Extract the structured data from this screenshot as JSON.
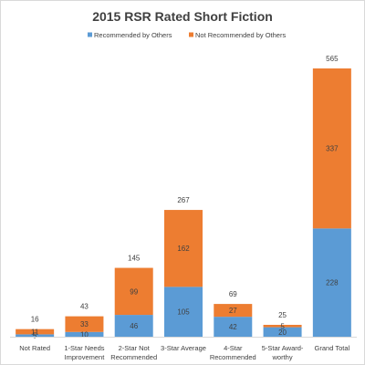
{
  "chart_data": {
    "type": "bar",
    "stacked": true,
    "title": "2015 RSR Rated Short Fiction",
    "categories": [
      [
        "Not Rated"
      ],
      [
        "1-Star Needs",
        "Improvement"
      ],
      [
        "2-Star Not",
        "Recommended"
      ],
      [
        "3-Star Average"
      ],
      [
        "4-Star",
        "Recommended"
      ],
      [
        "5-Star Award-",
        "worthy"
      ],
      [
        "Grand Total"
      ]
    ],
    "series": [
      {
        "name": "Recommended by Others",
        "color": "#5b9bd5",
        "values": [
          5,
          10,
          46,
          105,
          42,
          20,
          228
        ]
      },
      {
        "name": "Not Recommended by Others",
        "color": "#ed7d31",
        "values": [
          11,
          33,
          99,
          162,
          27,
          5,
          337
        ]
      }
    ],
    "totals": [
      16,
      43,
      145,
      267,
      69,
      25,
      565
    ],
    "legend_position": "top",
    "grid": false,
    "ylim": [
      0,
      565
    ]
  }
}
